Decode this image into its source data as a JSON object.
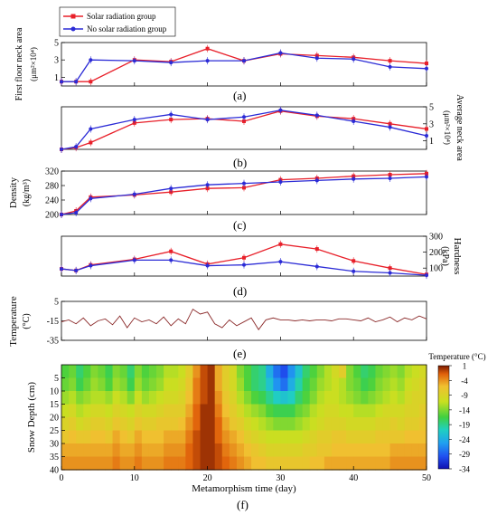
{
  "figure": {
    "legend": [
      "Solar radiation group",
      "No solar radiation group"
    ],
    "panel_labels": [
      "(a)",
      "(b)",
      "(c)",
      "(d)",
      "(e)",
      "(f)"
    ]
  },
  "colors": {
    "solar": "#e8202a",
    "nosolar": "#2b2bd6",
    "temperature_line": "#8b2a2a"
  },
  "chart_data": [
    {
      "type": "line",
      "ylabel": "First floor neck area (μm²×10⁴)",
      "ylim": [
        0,
        5
      ],
      "yticks": [
        1,
        3,
        5
      ],
      "xlim": [
        0,
        50
      ],
      "categories": [
        0,
        2,
        4,
        10,
        15,
        20,
        25,
        30,
        35,
        40,
        45,
        50
      ],
      "series": [
        {
          "name": "Solar radiation group",
          "values": [
            0.5,
            0.5,
            0.5,
            3.0,
            2.8,
            4.3,
            2.9,
            3.7,
            3.5,
            3.3,
            2.9,
            2.6
          ]
        },
        {
          "name": "No solar radiation group",
          "values": [
            0.5,
            0.5,
            3.0,
            2.9,
            2.7,
            2.9,
            2.9,
            3.8,
            3.2,
            3.1,
            2.2,
            2.0
          ]
        }
      ]
    },
    {
      "type": "line",
      "ylabel": "Average neck area (μm²×10⁴)",
      "ylim": [
        0,
        5
      ],
      "yticks": [
        1,
        3,
        5
      ],
      "xlim": [
        0,
        50
      ],
      "categories": [
        0,
        2,
        4,
        10,
        15,
        20,
        25,
        30,
        35,
        40,
        45,
        50
      ],
      "series": [
        {
          "name": "Solar radiation group",
          "values": [
            0.0,
            0.2,
            0.8,
            3.1,
            3.5,
            3.6,
            3.3,
            4.5,
            3.9,
            3.6,
            3.0,
            2.4
          ]
        },
        {
          "name": "No solar radiation group",
          "values": [
            0.0,
            0.3,
            2.4,
            3.5,
            4.1,
            3.5,
            3.8,
            4.6,
            4.0,
            3.3,
            2.6,
            1.6
          ]
        }
      ]
    },
    {
      "type": "line",
      "ylabel": "Density (kg/m³)",
      "ylim": [
        200,
        320
      ],
      "yticks": [
        200,
        240,
        280,
        320
      ],
      "xlim": [
        0,
        50
      ],
      "categories": [
        0,
        2,
        4,
        10,
        15,
        20,
        25,
        30,
        35,
        40,
        45,
        50
      ],
      "series": [
        {
          "name": "Solar radiation group",
          "values": [
            200,
            210,
            248,
            254,
            262,
            272,
            274,
            296,
            300,
            306,
            310,
            313
          ]
        },
        {
          "name": "No solar radiation group",
          "values": [
            200,
            205,
            244,
            256,
            272,
            282,
            286,
            290,
            294,
            298,
            300,
            304
          ]
        }
      ]
    },
    {
      "type": "line",
      "ylabel": "Hardness (kPa)",
      "ylim": [
        50,
        300
      ],
      "yticks": [
        100,
        200,
        300
      ],
      "xlim": [
        0,
        50
      ],
      "categories": [
        0,
        2,
        4,
        10,
        15,
        20,
        25,
        30,
        35,
        40,
        45,
        50
      ],
      "series": [
        {
          "name": "Solar radiation group",
          "values": [
            95,
            85,
            120,
            155,
            205,
            125,
            165,
            250,
            220,
            145,
            100,
            60
          ]
        },
        {
          "name": "No solar radiation group",
          "values": [
            95,
            85,
            115,
            150,
            150,
            115,
            120,
            140,
            110,
            80,
            70,
            55
          ]
        }
      ]
    },
    {
      "type": "line",
      "ylabel": "Temperature (°C)",
      "ylim": [
        -35,
        5
      ],
      "yticks": [
        5,
        -15,
        -35
      ],
      "xlim": [
        0,
        50
      ],
      "x": [
        0,
        1,
        2,
        3,
        4,
        5,
        6,
        7,
        8,
        9,
        10,
        11,
        12,
        13,
        14,
        15,
        16,
        17,
        18,
        19,
        20,
        21,
        22,
        23,
        24,
        25,
        26,
        27,
        28,
        29,
        30,
        31,
        32,
        33,
        34,
        35,
        36,
        37,
        38,
        39,
        40,
        41,
        42,
        43,
        44,
        45,
        46,
        47,
        48,
        49,
        50
      ],
      "values": [
        -16,
        -14,
        -18,
        -12,
        -20,
        -15,
        -13,
        -19,
        -10,
        -22,
        -12,
        -16,
        -14,
        -18,
        -11,
        -20,
        -13,
        -18,
        -3,
        -8,
        -6,
        -18,
        -22,
        -14,
        -20,
        -16,
        -12,
        -24,
        -14,
        -12,
        -14,
        -14,
        -15,
        -14,
        -15,
        -14,
        -14,
        -15,
        -13,
        -13,
        -14,
        -15,
        -12,
        -16,
        -14,
        -11,
        -16,
        -12,
        -14,
        -10,
        -13
      ]
    },
    {
      "type": "heatmap",
      "xlabel": "Metamorphism time (day)",
      "ylabel": "Snow Depth (cm)",
      "xlim": [
        0,
        50
      ],
      "ylim": [
        40,
        0
      ],
      "xticks": [
        0,
        10,
        20,
        30,
        40,
        50
      ],
      "yticks": [
        5,
        10,
        15,
        20,
        25,
        30,
        35,
        40
      ],
      "colorbar": {
        "title": "Temperature (°C)",
        "ticks": [
          1,
          -4,
          -9,
          -14,
          -19,
          -24,
          -29,
          -34
        ],
        "range": [
          -34,
          1
        ]
      },
      "values": [
        [
          -16,
          -15,
          -18,
          -16,
          -14,
          -15,
          -17,
          -14,
          -15,
          -18,
          -14,
          -16,
          -15,
          -14,
          -12,
          -12,
          -11,
          -8,
          -4,
          -1,
          0,
          -5,
          -8,
          -10,
          -14,
          -16,
          -18,
          -19,
          -24,
          -28,
          -30,
          -26,
          -22,
          -18,
          -16,
          -14,
          -12,
          -10,
          -8,
          -14,
          -16,
          -18,
          -17,
          -15,
          -14,
          -13,
          -14,
          -12,
          -11,
          -10
        ],
        [
          -15,
          -14,
          -17,
          -15,
          -13,
          -14,
          -16,
          -13,
          -14,
          -17,
          -13,
          -15,
          -14,
          -13,
          -11,
          -11,
          -10,
          -7,
          -3,
          -1,
          0,
          -5,
          -8,
          -10,
          -13,
          -16,
          -18,
          -19,
          -22,
          -26,
          -28,
          -24,
          -20,
          -17,
          -15,
          -13,
          -12,
          -11,
          -12,
          -14,
          -15,
          -17,
          -16,
          -14,
          -13,
          -12,
          -13,
          -11,
          -10,
          -9
        ],
        [
          -13,
          -12,
          -14,
          -13,
          -12,
          -12,
          -13,
          -11,
          -12,
          -14,
          -11,
          -13,
          -12,
          -11,
          -10,
          -10,
          -9,
          -6,
          -3,
          -1,
          0,
          -4,
          -7,
          -9,
          -12,
          -14,
          -16,
          -17,
          -19,
          -21,
          -22,
          -21,
          -18,
          -16,
          -14,
          -12,
          -11,
          -11,
          -12,
          -13,
          -14,
          -15,
          -14,
          -13,
          -12,
          -11,
          -12,
          -10,
          -9,
          -9
        ],
        [
          -11,
          -10,
          -12,
          -11,
          -10,
          -10,
          -11,
          -9,
          -10,
          -11,
          -9,
          -10,
          -10,
          -9,
          -8,
          -8,
          -8,
          -5,
          -2,
          0,
          0,
          -3,
          -6,
          -8,
          -10,
          -12,
          -13,
          -14,
          -16,
          -17,
          -17,
          -17,
          -15,
          -14,
          -12,
          -11,
          -10,
          -10,
          -11,
          -11,
          -12,
          -12,
          -12,
          -11,
          -10,
          -10,
          -10,
          -9,
          -9,
          -8
        ],
        [
          -9,
          -8,
          -10,
          -9,
          -8,
          -8,
          -9,
          -7,
          -8,
          -9,
          -7,
          -8,
          -8,
          -7,
          -7,
          -7,
          -6,
          -4,
          -2,
          0,
          0,
          -2,
          -5,
          -7,
          -8,
          -10,
          -11,
          -12,
          -13,
          -14,
          -14,
          -14,
          -13,
          -12,
          -11,
          -10,
          -9,
          -9,
          -9,
          -10,
          -10,
          -10,
          -10,
          -9,
          -9,
          -8,
          -9,
          -8,
          -8,
          -7
        ],
        [
          -7,
          -6,
          -7,
          -7,
          -6,
          -6,
          -7,
          -5,
          -6,
          -7,
          -5,
          -6,
          -6,
          -6,
          -5,
          -5,
          -5,
          -3,
          -1,
          0,
          0,
          -2,
          -4,
          -5,
          -6,
          -8,
          -9,
          -10,
          -11,
          -11,
          -11,
          -11,
          -11,
          -10,
          -9,
          -8,
          -8,
          -7,
          -7,
          -8,
          -8,
          -8,
          -8,
          -7,
          -7,
          -7,
          -7,
          -6,
          -6,
          -6
        ],
        [
          -5,
          -5,
          -5,
          -5,
          -5,
          -5,
          -5,
          -4,
          -5,
          -5,
          -4,
          -5,
          -5,
          -5,
          -4,
          -4,
          -4,
          -2,
          -1,
          0,
          0,
          -1,
          -3,
          -4,
          -5,
          -6,
          -7,
          -8,
          -9,
          -9,
          -9,
          -9,
          -9,
          -8,
          -8,
          -7,
          -7,
          -6,
          -6,
          -6,
          -6,
          -6,
          -6,
          -6,
          -6,
          -5,
          -5,
          -5,
          -5,
          -5
        ],
        [
          -4,
          -4,
          -4,
          -4,
          -4,
          -4,
          -4,
          -3,
          -4,
          -4,
          -3,
          -4,
          -4,
          -4,
          -3,
          -3,
          -3,
          -2,
          -1,
          0,
          0,
          -1,
          -2,
          -3,
          -4,
          -5,
          -6,
          -6,
          -7,
          -7,
          -7,
          -7,
          -7,
          -7,
          -6,
          -6,
          -5,
          -5,
          -5,
          -5,
          -5,
          -5,
          -5,
          -5,
          -5,
          -4,
          -4,
          -4,
          -4,
          -4
        ]
      ]
    }
  ],
  "heatmap_depths": [
    5,
    10,
    15,
    20,
    25,
    30,
    35,
    40
  ]
}
